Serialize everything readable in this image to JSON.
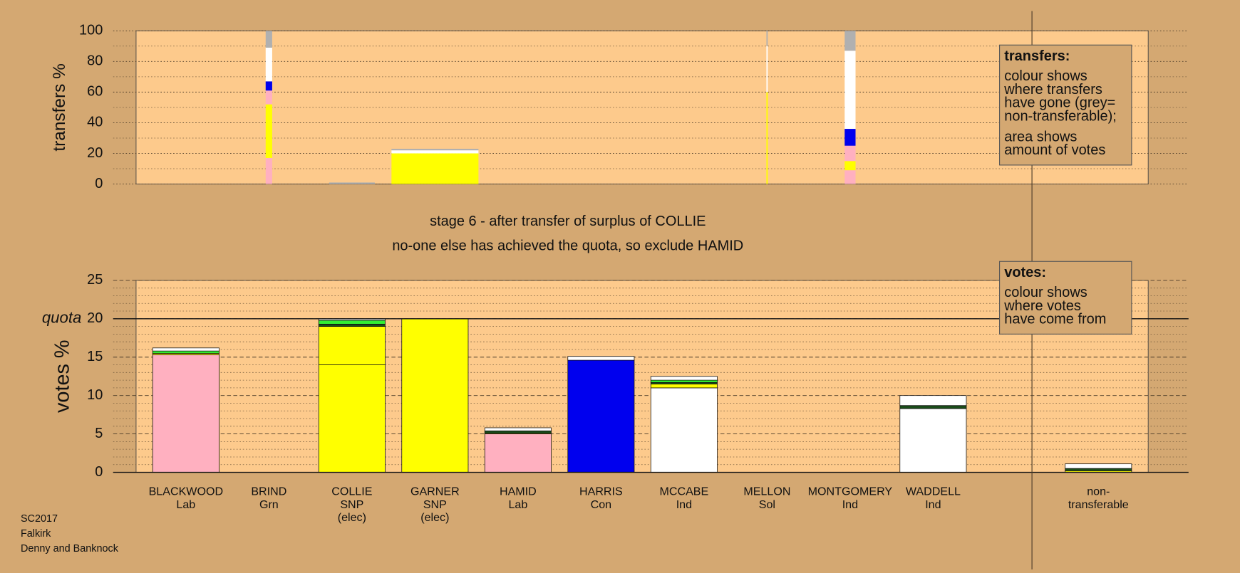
{
  "chart_data": [
    {
      "type": "transfer-bars",
      "ylabel": "transfers %",
      "ylim": [
        0,
        100
      ],
      "yticks": [
        0,
        20,
        40,
        60,
        80,
        100
      ],
      "legend": {
        "title": "transfers:",
        "paragraphs": [
          [
            "colour shows",
            "where transfers",
            "have gone (grey=",
            "non-transferable);"
          ],
          [
            "area shows",
            "amount of votes"
          ]
        ]
      },
      "bars": [
        null,
        {
          "amount": 1.5,
          "segments": [
            {
              "color": "#ffb0c0",
              "value": 17
            },
            {
              "color": "#ffff00",
              "value": 35
            },
            {
              "color": "#ffb0c0",
              "value": 9
            },
            {
              "color": "#0000ee",
              "value": 6
            },
            {
              "color": "#ffffff",
              "value": 22
            },
            {
              "color": "#b0b0b0",
              "value": 11
            }
          ]
        },
        {
          "amount": 10.5,
          "segments": [
            {
              "color": "#b0b0b0",
              "value": 1
            }
          ]
        },
        {
          "amount": 20,
          "segments": [
            {
              "color": "#ffff00",
              "value": 20
            },
            {
              "color": "#ffffff",
              "value": 2
            },
            {
              "color": "#b0b0b0",
              "value": 1
            }
          ]
        },
        null,
        null,
        null,
        {
          "amount": 0.3,
          "segments": [
            {
              "color": "#ffff00",
              "value": 60
            },
            {
              "color": "#ffffff",
              "value": 30
            },
            {
              "color": "#b0b0b0",
              "value": 10
            }
          ]
        },
        {
          "amount": 2.5,
          "segments": [
            {
              "color": "#ffb0c0",
              "value": 9
            },
            {
              "color": "#ffff00",
              "value": 6
            },
            {
              "color": "#ffb0c0",
              "value": 10
            },
            {
              "color": "#0000ee",
              "value": 11
            },
            {
              "color": "#ffffff",
              "value": 51
            },
            {
              "color": "#b0b0b0",
              "value": 13
            }
          ]
        },
        null,
        null
      ]
    },
    {
      "type": "vote-bars",
      "ylabel": "votes %",
      "ylim": [
        0,
        25
      ],
      "yticks": [
        0,
        5,
        10,
        15,
        20,
        25
      ],
      "quota": {
        "label": "quota",
        "value": 20
      },
      "legend": {
        "title": "votes:",
        "paragraphs": [
          [
            "colour shows",
            "where votes",
            "have come from"
          ]
        ]
      },
      "categories": [
        [
          "BLACKWOOD",
          "Lab"
        ],
        [
          "BRIND",
          "Grn"
        ],
        [
          "COLLIE",
          "SNP",
          "(elec)"
        ],
        [
          "GARNER",
          "SNP",
          "(elec)"
        ],
        [
          "HAMID",
          "Lab"
        ],
        [
          "HARRIS",
          "Con"
        ],
        [
          "MCCABE",
          "Ind"
        ],
        [
          "MELLON",
          "Sol"
        ],
        [
          "MONTGOMERY",
          "Ind"
        ],
        [
          "WADDELL",
          "Ind"
        ],
        [
          "non-",
          "transferable"
        ]
      ],
      "bars": [
        {
          "segments": [
            {
              "color": "#ffb0c0",
              "value": 15.3
            },
            {
              "color": "#ffff00",
              "value": 0.2
            },
            {
              "color": "#33ee33",
              "value": 0.3
            },
            {
              "color": "#ffffff",
              "value": 0.4
            }
          ]
        },
        null,
        {
          "segments": [
            {
              "color": "#ffff00",
              "value": 14
            },
            {
              "color": "#ffff00",
              "value": 5
            },
            {
              "color": "#1a4d1a",
              "value": 0.3
            },
            {
              "color": "#33ee33",
              "value": 0.5
            },
            {
              "color": "#ffffff",
              "value": 0.2
            }
          ]
        },
        {
          "segments": [
            {
              "color": "#ffff00",
              "value": 20
            }
          ]
        },
        {
          "segments": [
            {
              "color": "#ffb0c0",
              "value": 5
            },
            {
              "color": "#ffff00",
              "value": 0.1
            },
            {
              "color": "#1a4d1a",
              "value": 0.3
            },
            {
              "color": "#ffffff",
              "value": 0.4
            }
          ]
        },
        {
          "segments": [
            {
              "color": "#0000ee",
              "value": 14.6
            },
            {
              "color": "#ffffff",
              "value": 0.5
            }
          ]
        },
        {
          "segments": [
            {
              "color": "#ffffff",
              "value": 11
            },
            {
              "color": "#ffff00",
              "value": 0.5
            },
            {
              "color": "#1a4d1a",
              "value": 0.2
            },
            {
              "color": "#33ee33",
              "value": 0.3
            },
            {
              "color": "#ffffff",
              "value": 0.5
            }
          ]
        },
        null,
        null,
        {
          "segments": [
            {
              "color": "#ffffff",
              "value": 8.3
            },
            {
              "color": "#1a4d1a",
              "value": 0.4
            },
            {
              "color": "#ffffff",
              "value": 1.3
            }
          ]
        },
        {
          "segments": [
            {
              "color": "#ffff00",
              "value": 0.2
            },
            {
              "color": "#1a4d1a",
              "value": 0.3
            },
            {
              "color": "#ffffff",
              "value": 0.6
            }
          ]
        }
      ]
    }
  ],
  "caption": [
    "stage 6 - after transfer of surplus of COLLIE",
    "no-one else has achieved the quota, so exclude HAMID"
  ],
  "footer": [
    "SC2017",
    "Falkirk",
    "Denny and Banknock"
  ]
}
